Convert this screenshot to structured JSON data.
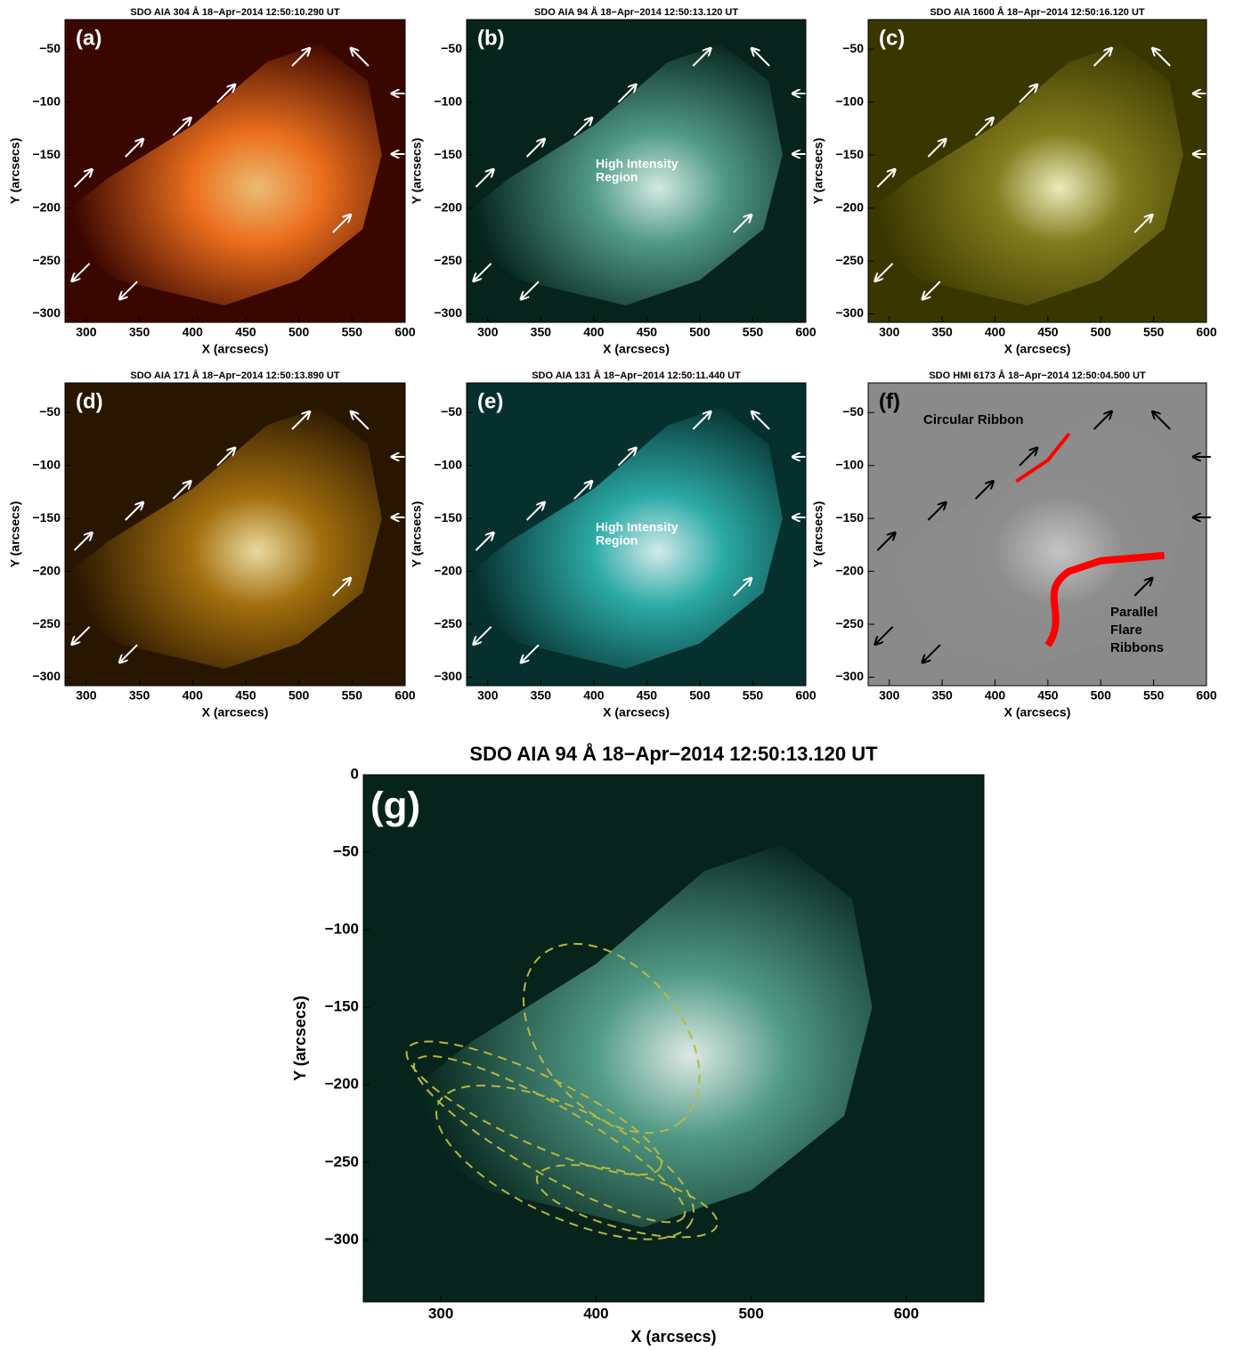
{
  "panels": [
    {
      "label": "(a)",
      "title": "SDO AIA 304 Å 18−Apr−2014 12:50:10.290 UT",
      "xlabel": "X (arcsecs)",
      "ylabel": "Y (arcsecs)",
      "xlim": [
        280,
        600
      ],
      "ylim": [
        -308,
        -22
      ],
      "xticks": [
        300,
        350,
        400,
        450,
        500,
        550,
        600
      ],
      "yticks": [
        {
          "value": -300,
          "label": "−300"
        },
        {
          "value": -250,
          "label": "−250"
        },
        {
          "value": -200,
          "label": "−200"
        },
        {
          "value": -150,
          "label": "−150"
        },
        {
          "value": -100,
          "label": "−100"
        },
        {
          "value": -50,
          "label": "−50"
        }
      ],
      "annotations": []
    },
    {
      "label": "(b)",
      "title": "SDO AIA 94 Å 18−Apr−2014 12:50:13.120 UT",
      "xlabel": "X (arcsecs)",
      "ylabel": "Y (arcsecs)",
      "xlim": [
        280,
        600
      ],
      "ylim": [
        -308,
        -22
      ],
      "xticks": [
        300,
        350,
        400,
        450,
        500,
        550,
        600
      ],
      "yticks": [
        {
          "value": -300,
          "label": "−300"
        },
        {
          "value": -250,
          "label": "−250"
        },
        {
          "value": -200,
          "label": "−200"
        },
        {
          "value": -150,
          "label": "−150"
        },
        {
          "value": -100,
          "label": "−100"
        },
        {
          "value": -50,
          "label": "−50"
        }
      ],
      "annotations": [
        "High Intensity",
        "Region"
      ]
    },
    {
      "label": "(c)",
      "title": "SDO AIA 1600 Å 18−Apr−2014 12:50:16.120 UT",
      "xlabel": "X (arcsecs)",
      "ylabel": "Y (arcsecs)",
      "xlim": [
        280,
        600
      ],
      "ylim": [
        -308,
        -22
      ],
      "xticks": [
        300,
        350,
        400,
        450,
        500,
        550,
        600
      ],
      "yticks": [
        {
          "value": -300,
          "label": "−300"
        },
        {
          "value": -250,
          "label": "−250"
        },
        {
          "value": -200,
          "label": "−200"
        },
        {
          "value": -150,
          "label": "−150"
        },
        {
          "value": -100,
          "label": "−100"
        },
        {
          "value": -50,
          "label": "−50"
        }
      ],
      "annotations": []
    },
    {
      "label": "(d)",
      "title": "SDO AIA 171 Å 18−Apr−2014 12:50:13.890 UT",
      "xlabel": "X (arcsecs)",
      "ylabel": "Y (arcsecs)",
      "xlim": [
        280,
        600
      ],
      "ylim": [
        -308,
        -22
      ],
      "xticks": [
        300,
        350,
        400,
        450,
        500,
        550,
        600
      ],
      "yticks": [
        {
          "value": -300,
          "label": "−300"
        },
        {
          "value": -250,
          "label": "−250"
        },
        {
          "value": -200,
          "label": "−200"
        },
        {
          "value": -150,
          "label": "−150"
        },
        {
          "value": -100,
          "label": "−100"
        },
        {
          "value": -50,
          "label": "−50"
        }
      ],
      "annotations": []
    },
    {
      "label": "(e)",
      "title": "SDO AIA 131 Å 18−Apr−2014 12:50:11.440 UT",
      "xlabel": "X (arcsecs)",
      "ylabel": "Y (arcsecs)",
      "xlim": [
        280,
        600
      ],
      "ylim": [
        -308,
        -22
      ],
      "xticks": [
        300,
        350,
        400,
        450,
        500,
        550,
        600
      ],
      "yticks": [
        {
          "value": -300,
          "label": "−300"
        },
        {
          "value": -250,
          "label": "−250"
        },
        {
          "value": -200,
          "label": "−200"
        },
        {
          "value": -150,
          "label": "−150"
        },
        {
          "value": -100,
          "label": "−100"
        },
        {
          "value": -50,
          "label": "−50"
        }
      ],
      "annotations": [
        "High Intensity",
        "Region"
      ]
    },
    {
      "label": "(f)",
      "title": "SDO HMI 6173 Å 18−Apr−2014 12:50:04.500 UT",
      "xlabel": "X (arcsecs)",
      "ylabel": "Y (arcsecs)",
      "xlim": [
        280,
        600
      ],
      "ylim": [
        -308,
        -22
      ],
      "xticks": [
        300,
        350,
        400,
        450,
        500,
        550,
        600
      ],
      "yticks": [
        {
          "value": -300,
          "label": "−300"
        },
        {
          "value": -250,
          "label": "−250"
        },
        {
          "value": -200,
          "label": "−200"
        },
        {
          "value": -150,
          "label": "−150"
        },
        {
          "value": -100,
          "label": "−100"
        },
        {
          "value": -50,
          "label": "−50"
        }
      ],
      "annotations": [
        "Circular Ribbon",
        "Parallel",
        "Flare",
        "Ribbons"
      ]
    },
    {
      "label": "(g)",
      "title": "SDO AIA 94 Å 18−Apr−2014 12:50:13.120 UT",
      "xlabel": "X (arcsecs)",
      "ylabel": "Y (arcsecs)",
      "xlim": [
        250,
        650
      ],
      "ylim": [
        -340,
        0
      ],
      "xticks": [
        300,
        400,
        500,
        600
      ],
      "yticks": [
        {
          "value": -300,
          "label": "−300"
        },
        {
          "value": -250,
          "label": "−250"
        },
        {
          "value": -200,
          "label": "−200"
        },
        {
          "value": -150,
          "label": "−150"
        },
        {
          "value": -100,
          "label": "−100"
        },
        {
          "value": -50,
          "label": "−50"
        },
        0
      ],
      "annotations": []
    }
  ]
}
